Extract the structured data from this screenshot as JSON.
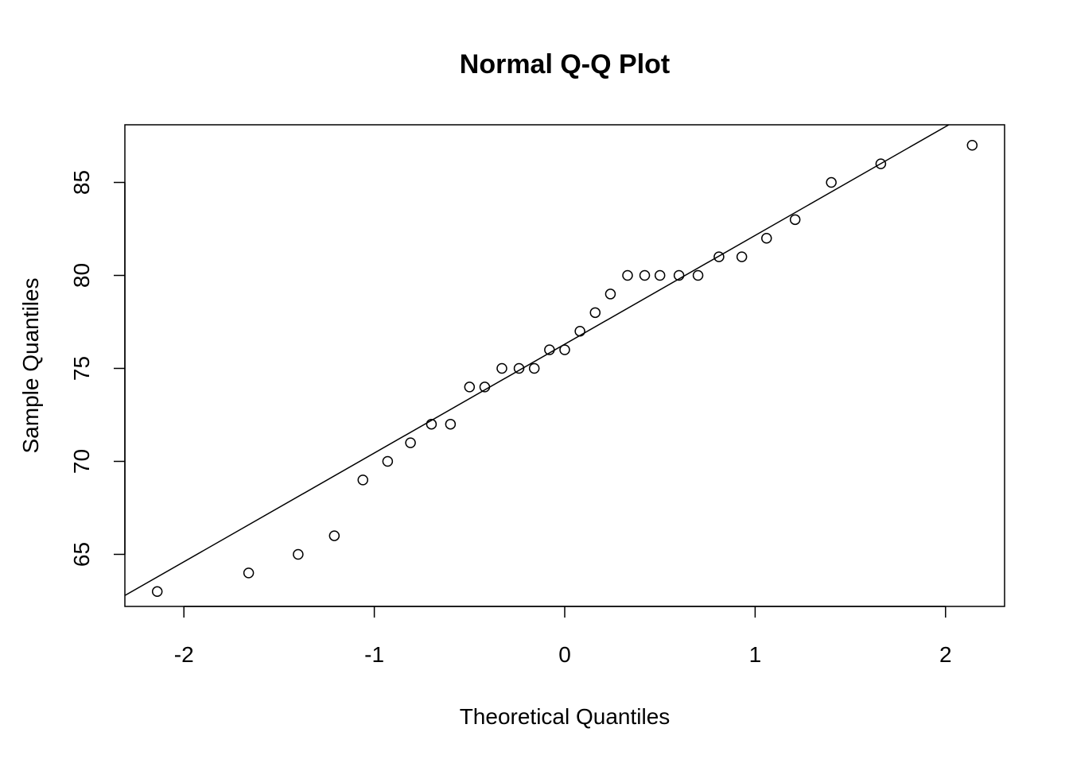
{
  "chart_data": {
    "type": "scatter",
    "title": "Normal Q-Q Plot",
    "xlabel": "Theoretical Quantiles",
    "ylabel": "Sample Quantiles",
    "xlim": [
      -2.31,
      2.31
    ],
    "ylim": [
      62.2,
      88.1
    ],
    "x_ticks": [
      -2,
      -1,
      0,
      1,
      2
    ],
    "x_tick_labels": [
      "-2",
      "-1",
      "0",
      "1",
      "2"
    ],
    "y_ticks": [
      65,
      70,
      75,
      80,
      85
    ],
    "y_tick_labels": [
      "65",
      "70",
      "75",
      "80",
      "85"
    ],
    "grid": false,
    "points": [
      {
        "x": -2.14,
        "y": 63
      },
      {
        "x": -1.66,
        "y": 64
      },
      {
        "x": -1.4,
        "y": 65
      },
      {
        "x": -1.21,
        "y": 66
      },
      {
        "x": -1.06,
        "y": 69
      },
      {
        "x": -0.93,
        "y": 70
      },
      {
        "x": -0.81,
        "y": 71
      },
      {
        "x": -0.7,
        "y": 72
      },
      {
        "x": -0.6,
        "y": 72
      },
      {
        "x": -0.5,
        "y": 74
      },
      {
        "x": -0.42,
        "y": 74
      },
      {
        "x": -0.33,
        "y": 75
      },
      {
        "x": -0.24,
        "y": 75
      },
      {
        "x": -0.16,
        "y": 75
      },
      {
        "x": -0.08,
        "y": 76
      },
      {
        "x": 0.0,
        "y": 76
      },
      {
        "x": 0.08,
        "y": 77
      },
      {
        "x": 0.16,
        "y": 78
      },
      {
        "x": 0.24,
        "y": 79
      },
      {
        "x": 0.33,
        "y": 80
      },
      {
        "x": 0.42,
        "y": 80
      },
      {
        "x": 0.5,
        "y": 80
      },
      {
        "x": 0.6,
        "y": 80
      },
      {
        "x": 0.7,
        "y": 80
      },
      {
        "x": 0.81,
        "y": 81
      },
      {
        "x": 0.93,
        "y": 81
      },
      {
        "x": 1.06,
        "y": 82
      },
      {
        "x": 1.21,
        "y": 83
      },
      {
        "x": 1.4,
        "y": 85
      },
      {
        "x": 1.66,
        "y": 86
      },
      {
        "x": 2.14,
        "y": 87
      }
    ],
    "reference_line": {
      "intercept": 76.3,
      "slope": 5.85
    }
  }
}
